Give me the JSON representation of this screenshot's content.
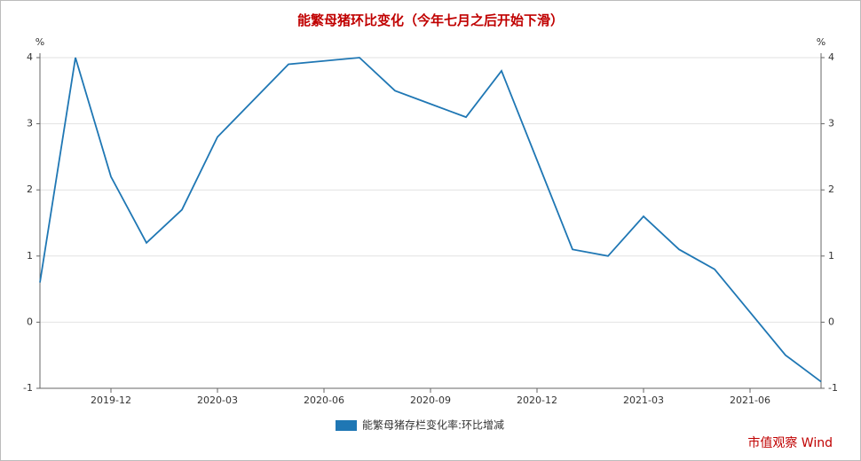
{
  "chart_data": {
    "type": "line",
    "title": "能繁母猪环比变化（今年七月之后开始下滑）",
    "y_unit": "%",
    "y2_unit": "%",
    "categories": [
      null,
      null,
      "2019-12",
      null,
      null,
      "2020-03",
      null,
      null,
      "2020-06",
      null,
      null,
      "2020-09",
      null,
      null,
      "2020-12",
      null,
      null,
      "2021-03",
      null,
      null,
      "2021-06",
      null,
      null
    ],
    "series": [
      {
        "name": "能繁母猪存栏变化率:环比增减",
        "color": "#1f77b4",
        "values": [
          0.6,
          4.0,
          2.2,
          1.2,
          1.7,
          2.8,
          3.35,
          3.9,
          3.95,
          4.0,
          3.5,
          3.3,
          3.1,
          3.8,
          2.45,
          1.1,
          1.0,
          1.6,
          1.1,
          0.8,
          0.15,
          -0.5,
          -0.9
        ]
      }
    ],
    "ylim": [
      -1,
      4
    ],
    "yticks": [
      -1,
      0,
      1,
      2,
      3,
      4
    ],
    "y2lim": [
      -1,
      4
    ],
    "y2ticks": [
      -1,
      0,
      1,
      2,
      3,
      4
    ],
    "grid": true,
    "legend": "bottom",
    "watermark": "市值观察 Wind"
  }
}
